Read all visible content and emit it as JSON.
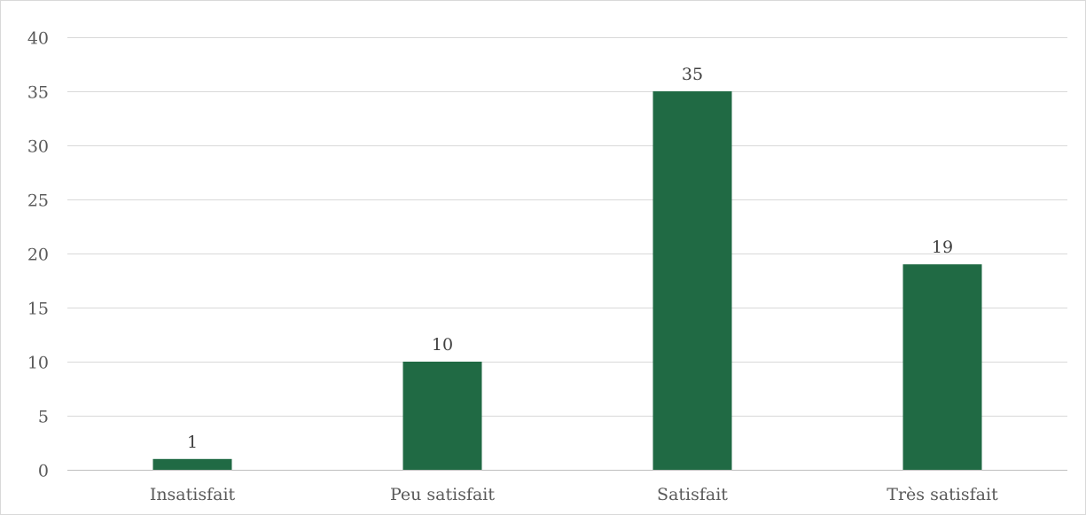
{
  "chart_data": {
    "type": "bar",
    "title": "",
    "xlabel": "",
    "ylabel": "",
    "categories": [
      "Insatisfait",
      "Peu satisfait",
      "Satisfait",
      "Très satisfait"
    ],
    "values": [
      1,
      10,
      35,
      19
    ],
    "ylim": [
      0,
      40
    ],
    "yticks": [
      0,
      5,
      10,
      15,
      20,
      25,
      30,
      35,
      40
    ],
    "data_labels": [
      "1",
      "10",
      "35",
      "19"
    ],
    "grid": true,
    "legend": "none",
    "bar_color": "#206a44"
  }
}
